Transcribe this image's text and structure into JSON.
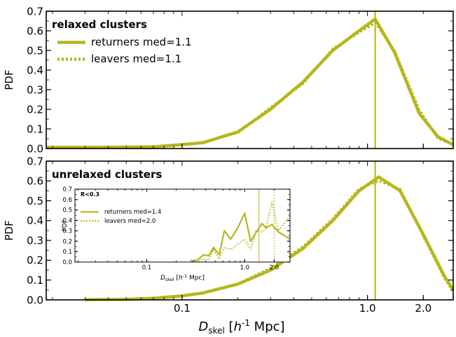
{
  "figure": {
    "xlabel_main": "D",
    "xlabel_sub": "skel",
    "xlabel_unit_open": " [",
    "xlabel_unit_h": "h",
    "xlabel_unit_exp": "-1",
    "xlabel_unit_close": " Mpc]"
  },
  "colors": {
    "line": "#b5b81a",
    "frame": "#000000"
  },
  "chart_data": [
    {
      "panel": "top",
      "type": "line",
      "title": "relaxed clusters",
      "ylabel": "PDF",
      "xscale": "log",
      "xlim": [
        0.0185,
        2.9
      ],
      "ylim": [
        0,
        0.7
      ],
      "xticks": [
        0.1,
        1.0,
        2.0
      ],
      "xtick_labels": [
        "",
        "",
        ""
      ],
      "yticks": [
        0,
        0.1,
        0.2,
        0.3,
        0.4,
        0.5,
        0.6,
        0.7
      ],
      "ytick_labels": [
        "0.0",
        "0.1",
        "0.2",
        "0.3",
        "0.4",
        "0.5",
        "0.6",
        "0.7"
      ],
      "legend": {
        "position": "top-left"
      },
      "series": [
        {
          "name": "returners med=1.1",
          "style": "solid",
          "x": [
            0.0185,
            0.03,
            0.05,
            0.07,
            0.1,
            0.13,
            0.2,
            0.3,
            0.45,
            0.65,
            0.9,
            1.1,
            1.4,
            1.9,
            2.4,
            2.9
          ],
          "y": [
            0.006,
            0.006,
            0.007,
            0.009,
            0.02,
            0.03,
            0.085,
            0.2,
            0.34,
            0.5,
            0.6,
            0.66,
            0.49,
            0.18,
            0.06,
            0.02
          ],
          "median": 1.1
        },
        {
          "name": "leavers med=1.1",
          "style": "dotted",
          "x": [
            0.0185,
            0.03,
            0.05,
            0.07,
            0.1,
            0.13,
            0.2,
            0.3,
            0.45,
            0.65,
            0.9,
            1.1,
            1.4,
            1.9,
            2.4,
            2.9
          ],
          "y": [
            0.005,
            0.006,
            0.007,
            0.01,
            0.02,
            0.032,
            0.08,
            0.21,
            0.33,
            0.51,
            0.59,
            0.64,
            0.5,
            0.2,
            0.05,
            0.02
          ],
          "median": 1.1
        }
      ]
    },
    {
      "panel": "bottom",
      "type": "line",
      "title": "unrelaxed clusters",
      "ylabel": "PDF",
      "xscale": "log",
      "xlim": [
        0.0185,
        2.9
      ],
      "ylim": [
        0,
        0.7
      ],
      "xticks": [
        0.1,
        1.0,
        2.0
      ],
      "xtick_labels": [
        "0.1",
        "1.0",
        "2.0"
      ],
      "yticks": [
        0,
        0.1,
        0.2,
        0.3,
        0.4,
        0.5,
        0.6,
        0.7
      ],
      "ytick_labels": [
        "0.0",
        "0.1",
        "0.2",
        "0.3",
        "0.4",
        "0.5",
        "0.6",
        "0.7"
      ],
      "series": [
        {
          "name": "returners",
          "style": "solid",
          "x": [
            0.03,
            0.05,
            0.07,
            0.1,
            0.13,
            0.2,
            0.3,
            0.45,
            0.65,
            0.9,
            1.15,
            1.5,
            2.0,
            2.6,
            2.9
          ],
          "y": [
            0.001,
            0.003,
            0.008,
            0.02,
            0.035,
            0.08,
            0.15,
            0.26,
            0.4,
            0.55,
            0.62,
            0.55,
            0.33,
            0.12,
            0.05
          ],
          "median": 1.1
        },
        {
          "name": "leavers",
          "style": "dotted",
          "x": [
            0.03,
            0.05,
            0.07,
            0.1,
            0.13,
            0.2,
            0.3,
            0.45,
            0.65,
            0.9,
            1.15,
            1.5,
            2.0,
            2.6,
            2.9
          ],
          "y": [
            0.001,
            0.003,
            0.009,
            0.021,
            0.034,
            0.082,
            0.16,
            0.27,
            0.41,
            0.56,
            0.6,
            0.56,
            0.32,
            0.11,
            0.04
          ],
          "median": 1.1
        }
      ]
    },
    {
      "panel": "inset",
      "type": "line",
      "title": "R<0.3",
      "ylabel": "PDF",
      "xlabel_main": "D",
      "xlabel_sub": "skel",
      "xlabel_unit_open": " [",
      "xlabel_unit_h": "h",
      "xlabel_unit_exp": "-1",
      "xlabel_unit_close": " Mpc]",
      "xscale": "log",
      "xlim": [
        0.0185,
        2.9
      ],
      "ylim": [
        0,
        0.7
      ],
      "xticks": [
        0.1,
        1.0,
        2.0
      ],
      "xtick_labels": [
        "0.1",
        "1.0",
        "2.0"
      ],
      "yticks": [
        0,
        0.1,
        0.2,
        0.3,
        0.4,
        0.5,
        0.6,
        0.7
      ],
      "ytick_labels": [
        "0.0",
        "0.1",
        "0.2",
        "0.3",
        "0.4",
        "0.5",
        "0.6",
        "0.7"
      ],
      "legend": {
        "position": "top-left"
      },
      "series": [
        {
          "name": "returners med=1.4",
          "style": "solid",
          "x": [
            0.28,
            0.33,
            0.38,
            0.43,
            0.48,
            0.55,
            0.62,
            0.72,
            0.85,
            1.0,
            1.15,
            1.3,
            1.5,
            1.65,
            1.9,
            2.2,
            2.9
          ],
          "y": [
            0.01,
            0.02,
            0.07,
            0.06,
            0.14,
            0.07,
            0.3,
            0.22,
            0.33,
            0.47,
            0.2,
            0.28,
            0.37,
            0.33,
            0.36,
            0.29,
            0.22
          ],
          "median": 1.4
        },
        {
          "name": "leavers med=2.0",
          "style": "dotted",
          "x": [
            0.28,
            0.33,
            0.38,
            0.43,
            0.48,
            0.55,
            0.62,
            0.72,
            0.85,
            1.0,
            1.15,
            1.3,
            1.5,
            1.65,
            1.9,
            2.2,
            2.9
          ],
          "y": [
            0.02,
            0.0,
            0.03,
            0.02,
            0.12,
            0.03,
            0.14,
            0.12,
            0.17,
            0.22,
            0.12,
            0.3,
            0.29,
            0.32,
            0.58,
            0.3,
            0.44
          ],
          "median": 2.0
        }
      ]
    }
  ]
}
